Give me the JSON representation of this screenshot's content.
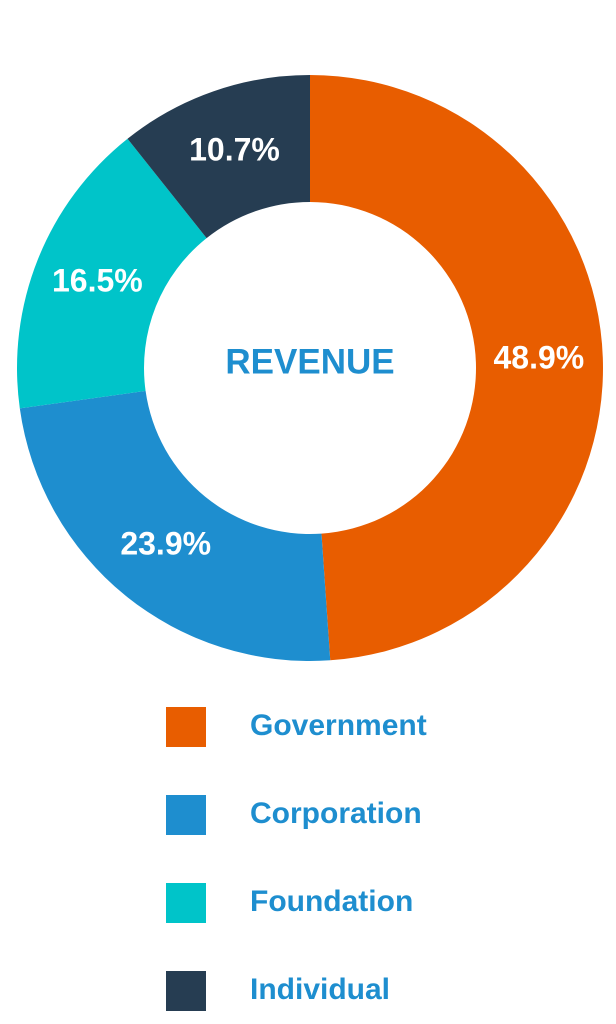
{
  "chart_data": {
    "type": "donut",
    "title": "REVENUE",
    "categories": [
      "Government",
      "Corporation",
      "Foundation",
      "Individual"
    ],
    "values": [
      48.9,
      23.9,
      16.5,
      10.7
    ],
    "value_labels": [
      "48.9%",
      "23.9%",
      "16.5%",
      "10.7%"
    ],
    "colors": [
      "#e85d00",
      "#1e8ecf",
      "#00c4c9",
      "#263d52"
    ]
  }
}
